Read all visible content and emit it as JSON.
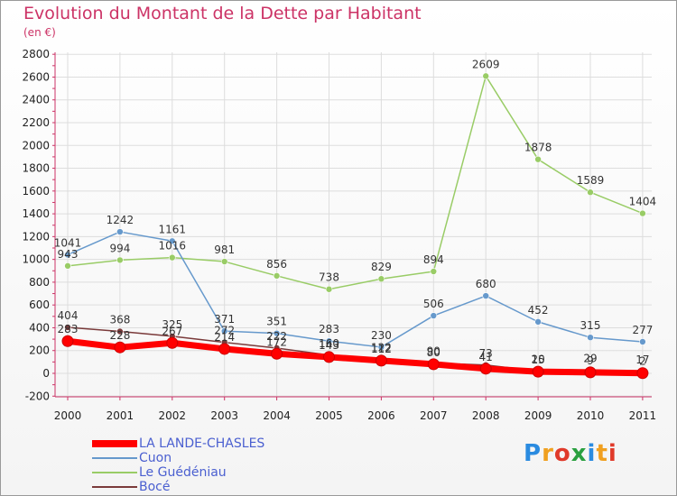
{
  "header": {
    "title": "Evolution du Montant de la Dette par Habitant",
    "unit": "(en €)"
  },
  "logo": {
    "text": "Proxiti"
  },
  "colors": {
    "title": "#cc3366",
    "axis": "#cc3366",
    "grid": "#dddddd",
    "legend_text": "#4a5fd0"
  },
  "chart_data": {
    "type": "line",
    "title": "Evolution du Montant de la Dette par Habitant",
    "subtitle": "(en €)",
    "xlabel": "",
    "ylabel": "",
    "x": [
      "2000",
      "2001",
      "2002",
      "2003",
      "2004",
      "2005",
      "2006",
      "2007",
      "2008",
      "2009",
      "2010",
      "2011"
    ],
    "ylim": [
      -200,
      2800
    ],
    "yticks": [
      -200,
      0,
      200,
      400,
      600,
      800,
      1000,
      1200,
      1400,
      1600,
      1800,
      2000,
      2200,
      2400,
      2600,
      2800
    ],
    "grid": true,
    "legend_position": "bottom-left",
    "series": [
      {
        "name": "LA LANDE-CHASLES",
        "color": "#ff0000",
        "width": 7,
        "values": [
          283,
          228,
          267,
          214,
          172,
          143,
          112,
          80,
          41,
          15,
          9,
          2
        ],
        "labels": [
          "283",
          "228",
          "267",
          "214",
          "172",
          "143",
          "112",
          "80",
          "41",
          "15",
          "9",
          "2"
        ]
      },
      {
        "name": "Cuon",
        "color": "#6699cc",
        "width": 1.5,
        "values": [
          1041,
          1242,
          1161,
          371,
          351,
          283,
          230,
          506,
          680,
          452,
          315,
          277
        ],
        "labels": [
          "1041",
          "1242",
          "1161",
          "371",
          "351",
          "283",
          "230",
          "506",
          "680",
          "452",
          "315",
          "277"
        ]
      },
      {
        "name": "Le Guédéniau",
        "color": "#99cc66",
        "width": 1.5,
        "values": [
          943,
          994,
          1016,
          981,
          856,
          738,
          829,
          894,
          2609,
          1878,
          1589,
          1404
        ],
        "labels": [
          "943",
          "994",
          "1016",
          "981",
          "856",
          "738",
          "829",
          "894",
          "2609",
          "1878",
          "1589",
          "1404"
        ]
      },
      {
        "name": "Bocé",
        "color": "#7a3a3a",
        "width": 1.5,
        "values": [
          404,
          368,
          325,
          272,
          222,
          160,
          122,
          90,
          73,
          20,
          29,
          17
        ],
        "labels": [
          "404",
          "368",
          "325",
          "272",
          "222",
          "160",
          "122",
          "90",
          "73",
          "20",
          "29",
          "17"
        ]
      }
    ]
  }
}
